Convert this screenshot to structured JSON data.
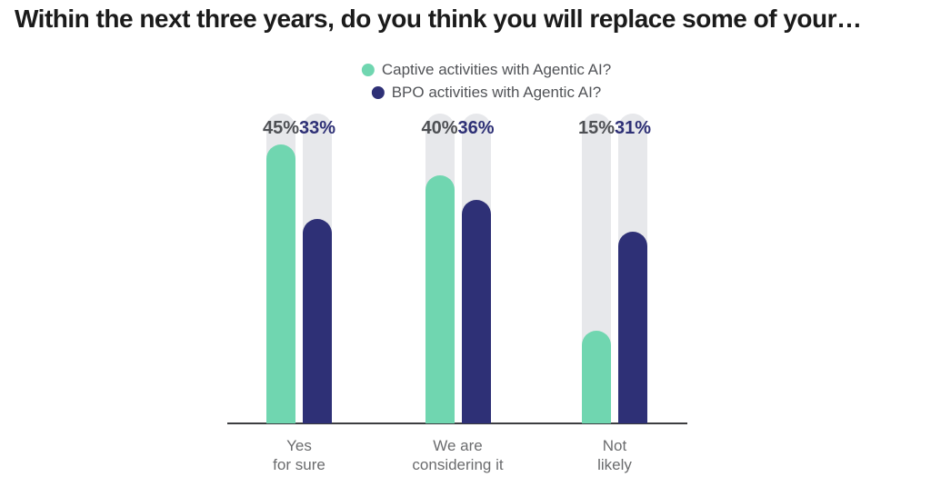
{
  "chart_data": {
    "type": "bar",
    "title": "Within the next three years, do you think you will replace some of your…",
    "categories": [
      "Yes\nfor sure",
      "We are\nconsidering it",
      "Not\nlikely"
    ],
    "series": [
      {
        "name": "Captive activities with Agentic AI?",
        "values": [
          45,
          40,
          15
        ],
        "color": "#70d6b0",
        "value_label_color": "#4e5054"
      },
      {
        "name": "BPO activities with Agentic AI?",
        "values": [
          33,
          36,
          31
        ],
        "color": "#2e3076",
        "value_label_color": "#2e3076"
      }
    ],
    "value_suffix": "%",
    "ylim": [
      0,
      50
    ],
    "grid": false,
    "legend_position": "top-center",
    "track_color": "#e7e8eb",
    "axis_line_color": "#3c3d40",
    "category_label_color": "#6b6c6e",
    "legend_text_color": "#515357"
  }
}
